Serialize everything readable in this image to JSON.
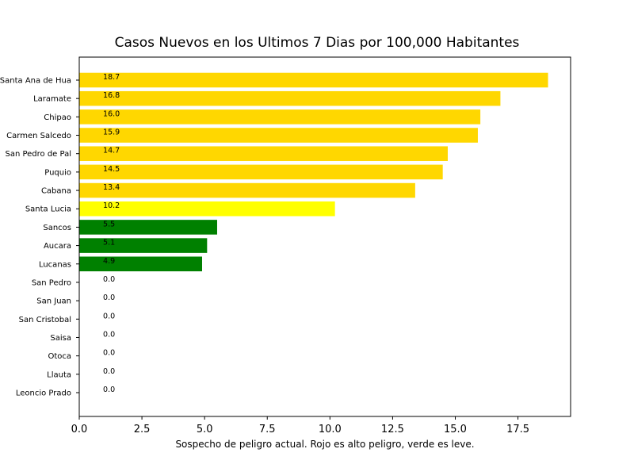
{
  "chart_data": {
    "type": "bar",
    "orientation": "horizontal",
    "title": "Casos Nuevos en los Ultimos 7 Dias por 100,000 Habitantes",
    "xlabel": "Sospecho de peligro actual. Rojo es alto peligro, verde es leve.",
    "ylabel": "",
    "xlim": [
      0,
      19.6
    ],
    "xticks": [
      {
        "value": 0.0,
        "label": "0.0"
      },
      {
        "value": 2.5,
        "label": "2.5"
      },
      {
        "value": 5.0,
        "label": "5.0"
      },
      {
        "value": 7.5,
        "label": "7.5"
      },
      {
        "value": 10.0,
        "label": "10.0"
      },
      {
        "value": 12.5,
        "label": "12.5"
      },
      {
        "value": 15.0,
        "label": "15.0"
      },
      {
        "value": 17.5,
        "label": "17.5"
      }
    ],
    "grid": false,
    "legend": "none",
    "label_x_value": 0.95,
    "categories": [
      "Santa Ana de Hua",
      "Laramate",
      "Chipao",
      "Carmen Salcedo",
      "San Pedro de Pal",
      "Puquio",
      "Cabana",
      "Santa Lucia",
      "Sancos",
      "Aucara",
      "Lucanas",
      "San Pedro",
      "San Juan",
      "San Cristobal",
      "Saisa",
      "Otoca",
      "Llauta",
      "Leoncio Prado"
    ],
    "values": [
      18.7,
      16.8,
      16.0,
      15.9,
      14.7,
      14.5,
      13.4,
      10.2,
      5.5,
      5.1,
      4.9,
      0.0,
      0.0,
      0.0,
      0.0,
      0.0,
      0.0,
      0.0
    ],
    "labels": [
      "18.7",
      "16.8",
      "16.0",
      "15.9",
      "14.7",
      "14.5",
      "13.4",
      "10.2",
      "5.5",
      "5.1",
      "4.9",
      "0.0",
      "0.0",
      "0.0",
      "0.0",
      "0.0",
      "0.0",
      "0.0"
    ],
    "colors": [
      "#ffd700",
      "#ffd700",
      "#ffd700",
      "#ffd700",
      "#ffd700",
      "#ffd700",
      "#ffd700",
      "#ffff00",
      "#008000",
      "#008000",
      "#008000",
      "#008000",
      "#008000",
      "#008000",
      "#008000",
      "#008000",
      "#008000",
      "#008000"
    ]
  }
}
